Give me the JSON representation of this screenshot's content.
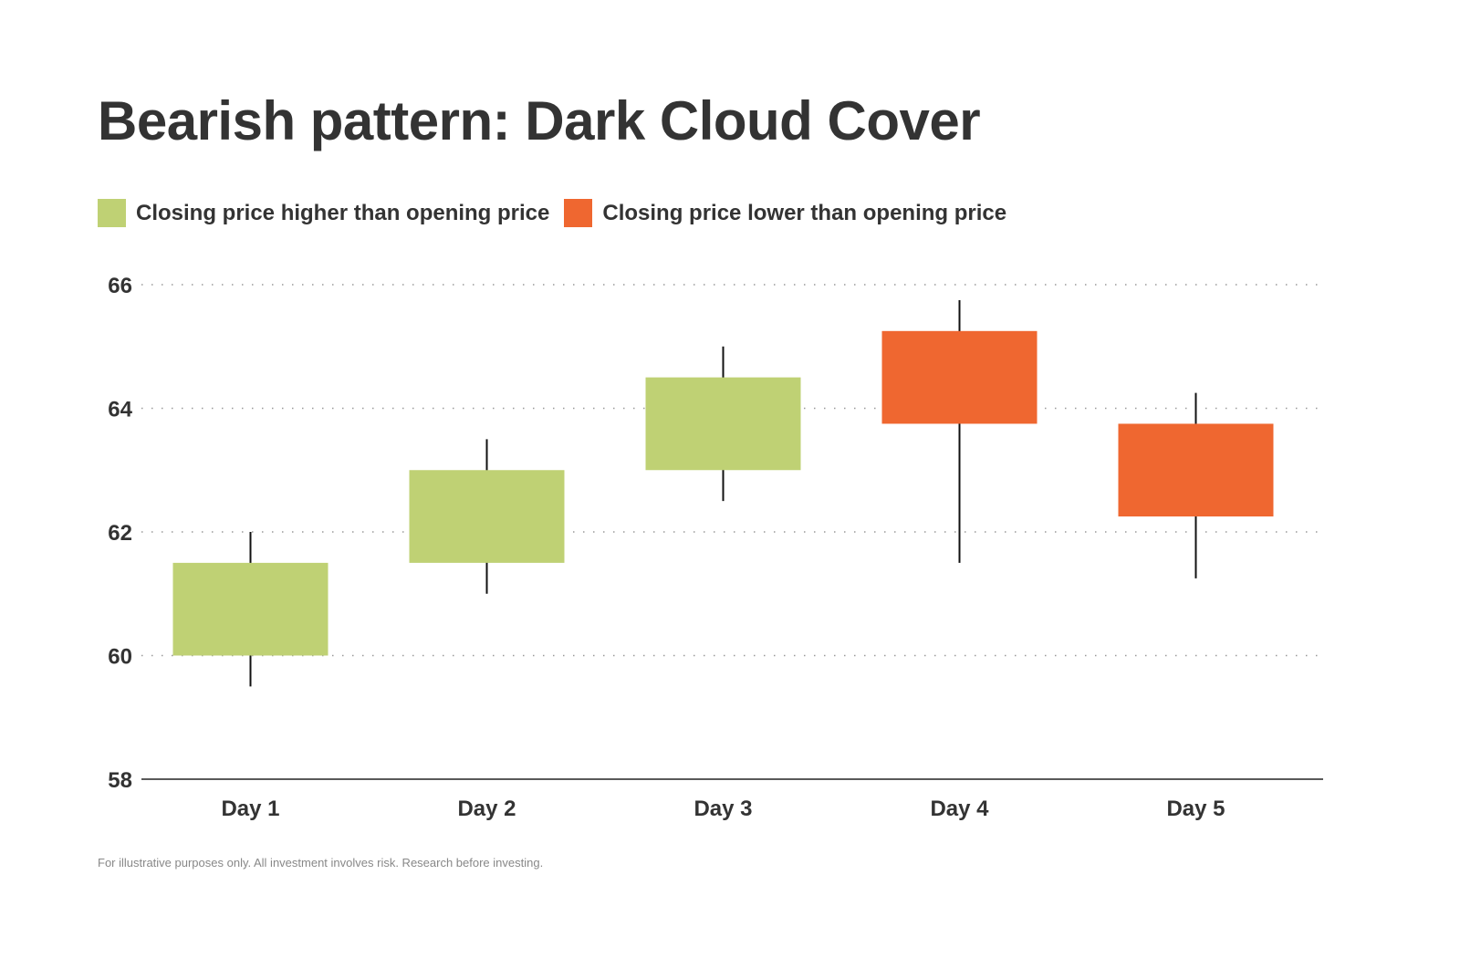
{
  "chart_data": {
    "type": "candlestick",
    "title": "Bearish pattern: Dark Cloud Cover",
    "xlabel": "",
    "ylabel": "",
    "ylim": [
      58,
      66
    ],
    "yticks": [
      58,
      60,
      62,
      64,
      66
    ],
    "grid": "horizontal dotted",
    "legend_position": "top-left",
    "legend": [
      {
        "label": "Closing price higher than opening price",
        "color": "#bfd174"
      },
      {
        "label": "Closing price lower than opening price",
        "color": "#ef6730"
      }
    ],
    "categories": [
      "Day 1",
      "Day 2",
      "Day 3",
      "Day 4",
      "Day 5"
    ],
    "candles": [
      {
        "open": 60,
        "close": 61.5,
        "high": 62,
        "low": 59.5
      },
      {
        "open": 61.5,
        "close": 63,
        "high": 63.5,
        "low": 61
      },
      {
        "open": 63,
        "close": 64.5,
        "high": 65,
        "low": 62.5
      },
      {
        "open": 65.25,
        "close": 63.75,
        "high": 65.75,
        "low": 61.5
      },
      {
        "open": 63.75,
        "close": 62.25,
        "high": 64.25,
        "low": 61.25
      }
    ],
    "colors": {
      "up": "#bfd174",
      "down": "#ef6730",
      "wick": "#111111",
      "text": "#333333"
    }
  },
  "footer": "For illustrative purposes only. All investment involves risk. Research before investing."
}
